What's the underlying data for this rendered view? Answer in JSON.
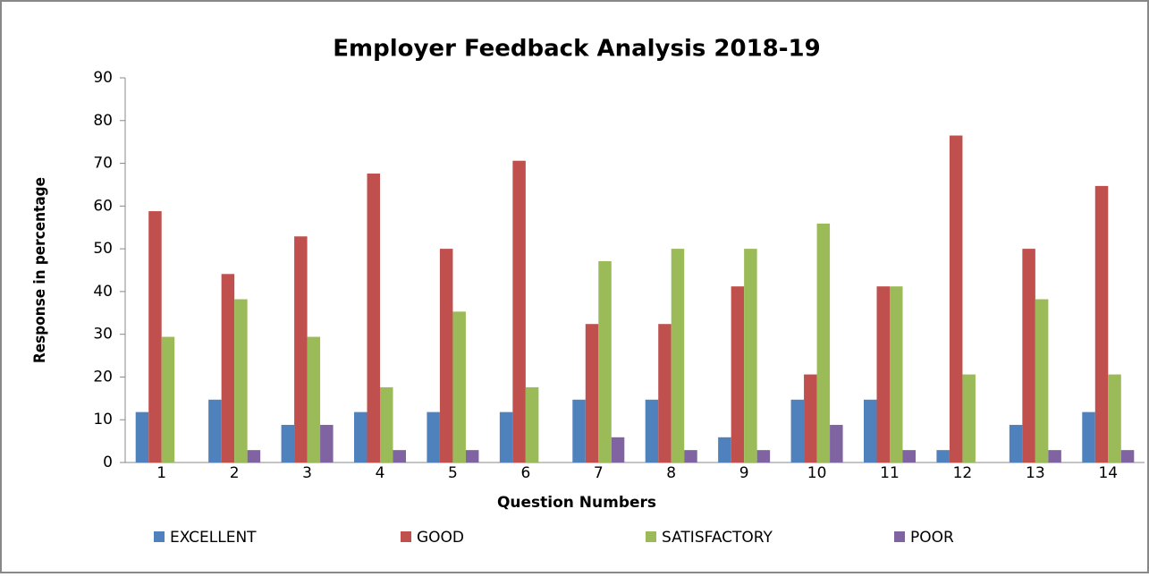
{
  "chart_data": {
    "type": "bar",
    "title": "Employer Feedback Analysis  2018-19",
    "x_label": "Question Numbers",
    "y_label": "Response in percentage",
    "categories": [
      "1",
      "2",
      "3",
      "4",
      "5",
      "6",
      "7",
      "8",
      "9",
      "10",
      "11",
      "12",
      "13",
      "14"
    ],
    "series": [
      {
        "name": "EXCELLENT",
        "color": "#4f81bd",
        "values": [
          11.8,
          14.7,
          8.8,
          11.8,
          11.8,
          11.8,
          14.7,
          14.7,
          5.9,
          14.7,
          14.7,
          2.9,
          8.8,
          11.8
        ]
      },
      {
        "name": "GOOD",
        "color": "#c0504d",
        "values": [
          58.8,
          44.1,
          52.9,
          67.6,
          50,
          70.6,
          32.4,
          32.4,
          41.2,
          20.6,
          41.2,
          76.5,
          50,
          64.7
        ]
      },
      {
        "name": "SATISFACTORY",
        "color": "#9bbb59",
        "values": [
          29.4,
          38.2,
          29.4,
          17.6,
          35.3,
          17.6,
          47.1,
          50,
          50,
          55.9,
          41.2,
          20.6,
          38.2,
          20.6
        ]
      },
      {
        "name": "POOR",
        "color": "#8064a2",
        "values": [
          0,
          2.9,
          8.8,
          2.9,
          2.9,
          0,
          5.9,
          2.9,
          2.9,
          8.8,
          2.9,
          0,
          2.9,
          2.9
        ]
      }
    ],
    "ylim": [
      0,
      90
    ],
    "yticks": [
      0,
      10,
      20,
      30,
      40,
      50,
      60,
      70,
      80,
      90
    ],
    "grid": false,
    "legend": "bottom"
  }
}
